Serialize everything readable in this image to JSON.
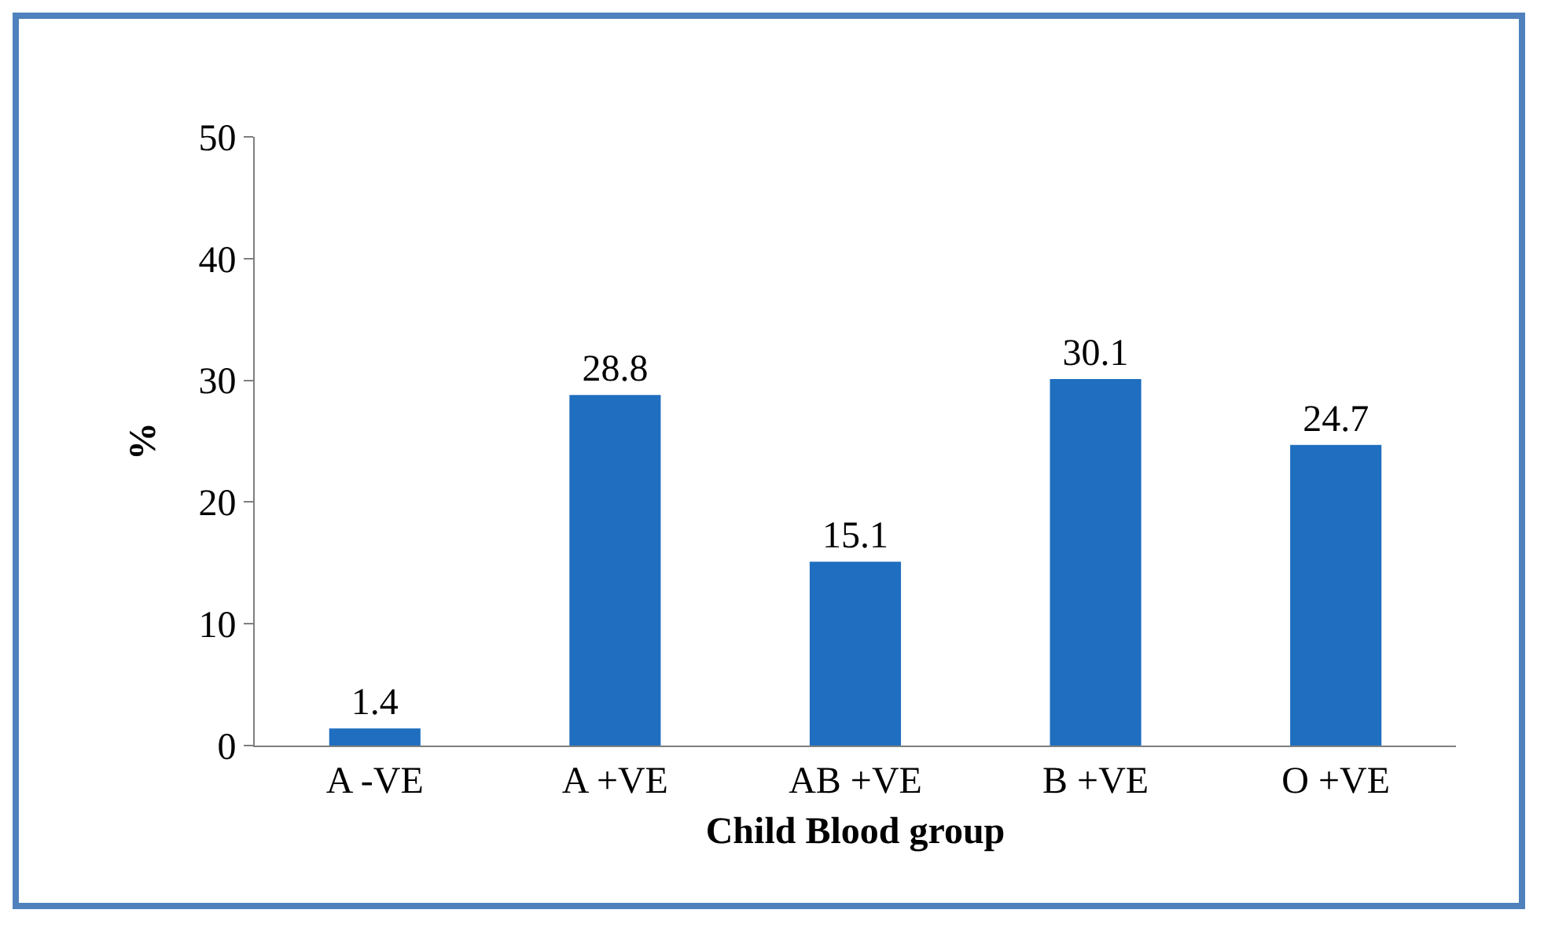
{
  "chart_data": {
    "type": "bar",
    "xlabel": "Child Blood group",
    "ylabel": "%",
    "categories": [
      "A -VE",
      "A +VE",
      "AB +VE",
      "B +VE",
      "O +VE"
    ],
    "values": [
      1.4,
      28.8,
      15.1,
      30.1,
      24.7
    ],
    "color": "#1f6ebf",
    "ylim": [
      0,
      50
    ],
    "yticks": [
      0,
      10,
      20,
      30,
      40,
      50
    ],
    "grid": false,
    "data_labels": true
  }
}
